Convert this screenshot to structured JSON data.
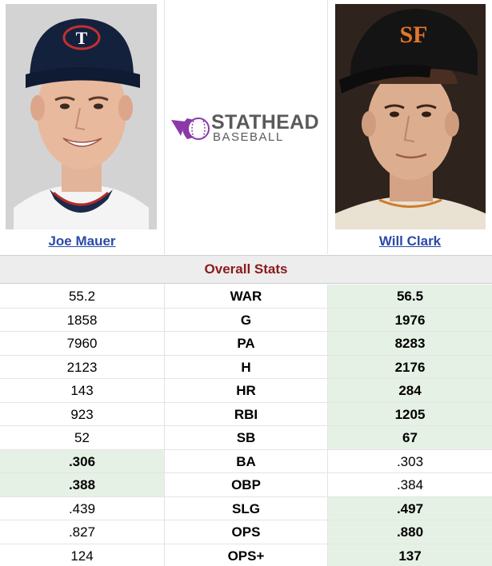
{
  "players": {
    "left": {
      "name": "Joe Mauer"
    },
    "right": {
      "name": "Will Clark"
    }
  },
  "logo": {
    "line1": "STATHEAD",
    "line2": "BASEBALL"
  },
  "section_title": "Overall Stats",
  "stats": [
    {
      "label": "WAR",
      "left": "55.2",
      "right": "56.5",
      "winner": "right"
    },
    {
      "label": "G",
      "left": "1858",
      "right": "1976",
      "winner": "right"
    },
    {
      "label": "PA",
      "left": "7960",
      "right": "8283",
      "winner": "right"
    },
    {
      "label": "H",
      "left": "2123",
      "right": "2176",
      "winner": "right"
    },
    {
      "label": "HR",
      "left": "143",
      "right": "284",
      "winner": "right"
    },
    {
      "label": "RBI",
      "left": "923",
      "right": "1205",
      "winner": "right"
    },
    {
      "label": "SB",
      "left": "52",
      "right": "67",
      "winner": "right"
    },
    {
      "label": "BA",
      "left": ".306",
      "right": ".303",
      "winner": "left"
    },
    {
      "label": "OBP",
      "left": ".388",
      "right": ".384",
      "winner": "left"
    },
    {
      "label": "SLG",
      "left": ".439",
      "right": ".497",
      "winner": "right"
    },
    {
      "label": "OPS",
      "left": ".827",
      "right": ".880",
      "winner": "right"
    },
    {
      "label": "OPS+",
      "left": "124",
      "right": "137",
      "winner": "right"
    }
  ],
  "colors": {
    "win_bg": "#e6f1e6",
    "title": "#8b1a1a",
    "link": "#2b4aa8",
    "brand_purple": "#8b3aa8"
  }
}
